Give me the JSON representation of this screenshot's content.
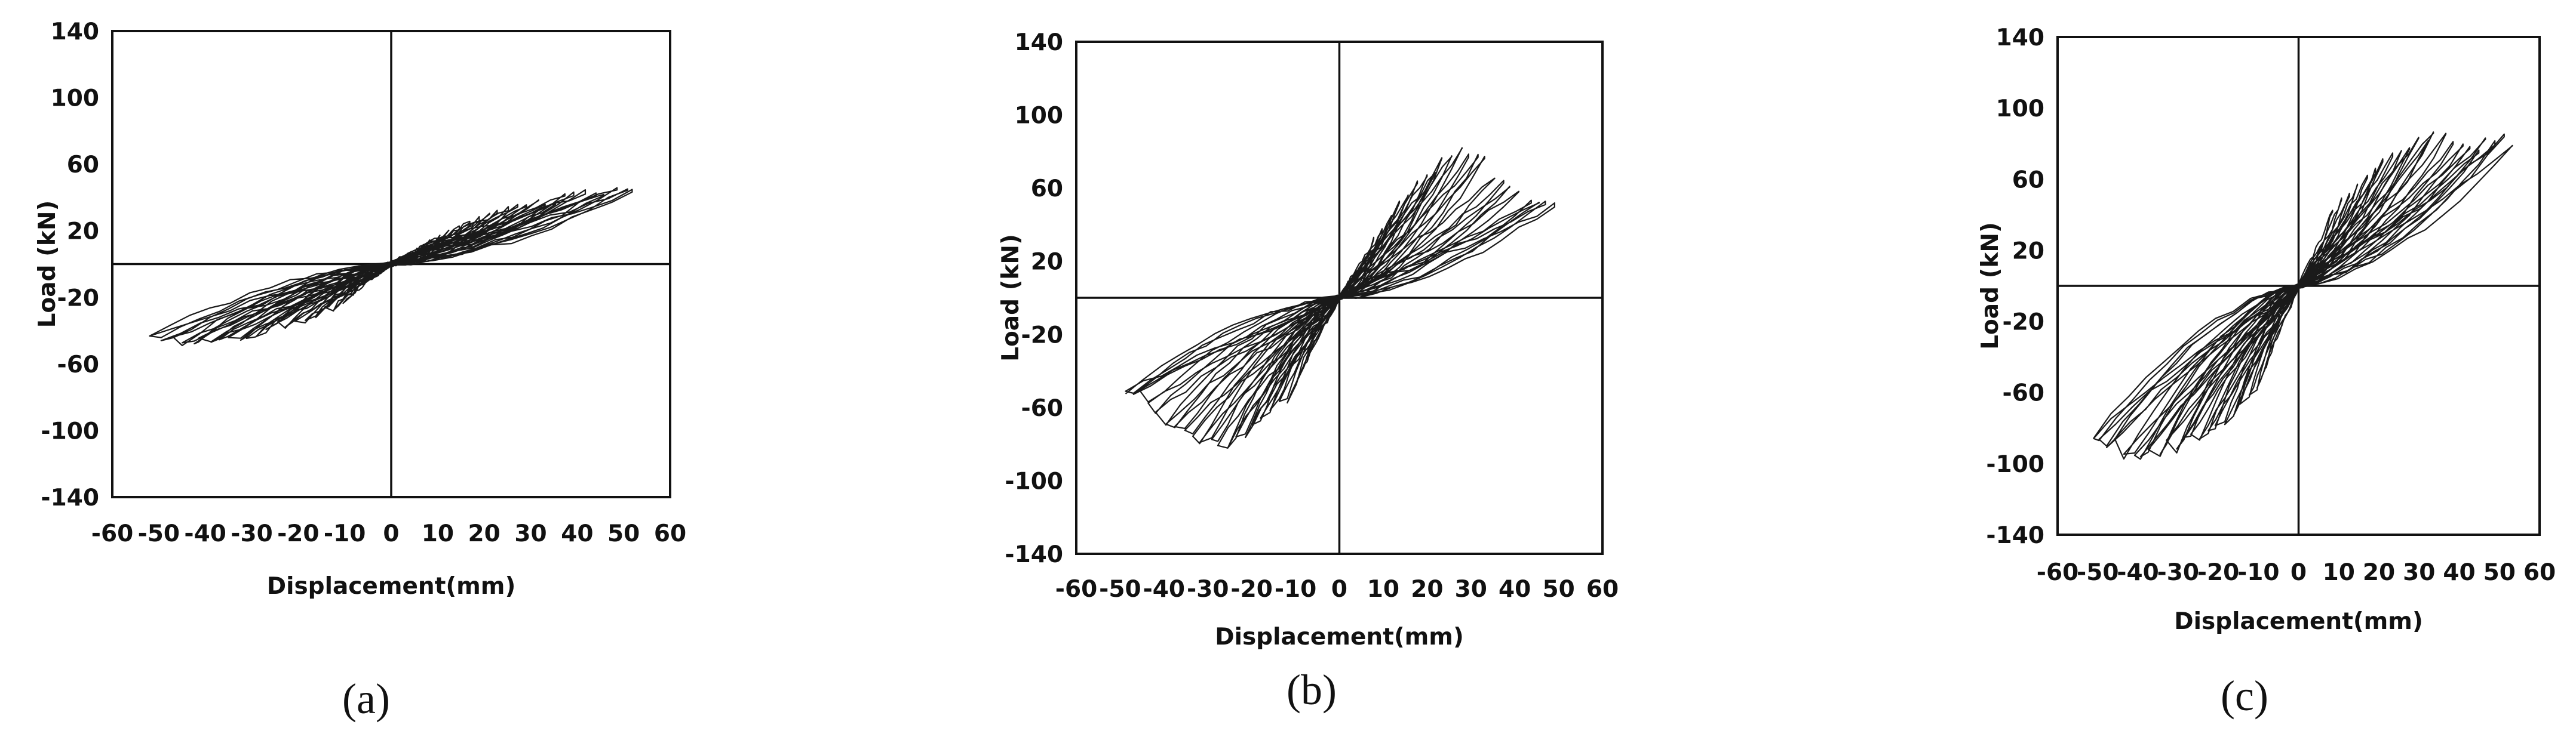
{
  "chart_data": [
    {
      "type": "line",
      "caption": "(a)",
      "xlabel": "Displacement(mm)",
      "ylabel": "Load (kN)",
      "xlim": [
        -60,
        60
      ],
      "ylim": [
        -140,
        140
      ],
      "xticks": [
        "-60",
        "-50",
        "-40",
        "-30",
        "-20",
        "-10",
        "0",
        "10",
        "20",
        "30",
        "40",
        "50",
        "60"
      ],
      "yticks": [
        "140",
        "100",
        "60",
        "20",
        "-20",
        "-60",
        "-100",
        "-140"
      ],
      "grid": false,
      "legend": "none",
      "x_limits_reached": [
        -52,
        53
      ],
      "peak_load_kN": {
        "positive": 47,
        "negative": -50
      },
      "envelope": {
        "x": [
          -52,
          -45,
          -40,
          -30,
          -20,
          -10,
          0,
          10,
          20,
          30,
          40,
          50,
          53
        ],
        "y": [
          -48,
          -50,
          -48,
          -44,
          -36,
          -24,
          0,
          18,
          30,
          37,
          43,
          46,
          47
        ]
      },
      "series": []
    },
    {
      "type": "line",
      "caption": "(b)",
      "xlabel": "Displacement(mm)",
      "ylabel": "Load (kN)",
      "xlim": [
        -60,
        60
      ],
      "ylim": [
        -140,
        140
      ],
      "xticks": [
        "-60",
        "-50",
        "-40",
        "-30",
        "-20",
        "-10",
        "0",
        "10",
        "20",
        "30",
        "40",
        "50",
        "60"
      ],
      "yticks": [
        "140",
        "100",
        "60",
        "20",
        "-20",
        "-60",
        "-100",
        "-140"
      ],
      "grid": false,
      "legend": "none",
      "x_limits_reached": [
        -50,
        50
      ],
      "peak_load_kN": {
        "positive": 87,
        "negative": -84
      },
      "envelope": {
        "x": [
          -50,
          -45,
          -40,
          -35,
          -30,
          -25,
          -20,
          -10,
          0,
          10,
          20,
          25,
          30,
          35,
          40,
          45,
          50
        ],
        "y": [
          -52,
          -55,
          -70,
          -80,
          -84,
          -82,
          -76,
          -52,
          0,
          42,
          74,
          82,
          87,
          70,
          62,
          55,
          50
        ]
      },
      "series": []
    },
    {
      "type": "line",
      "caption": "(c)",
      "xlabel": "Displacement(mm)",
      "ylabel": "Load (kN)",
      "xlim": [
        -60,
        60
      ],
      "ylim": [
        -140,
        140
      ],
      "xticks": [
        "-60",
        "-50",
        "-40",
        "-30",
        "-20",
        "-10",
        "0",
        "10",
        "20",
        "30",
        "40",
        "50",
        "60"
      ],
      "yticks": [
        "140",
        "100",
        "60",
        "20",
        "-20",
        "-60",
        "-100",
        "-140"
      ],
      "grid": false,
      "legend": "none",
      "x_limits_reached": [
        -52,
        54
      ],
      "peak_load_kN": {
        "positive": 90,
        "negative": -97
      },
      "envelope": {
        "x": [
          -52,
          -45,
          -40,
          -35,
          -30,
          -25,
          -20,
          -10,
          0,
          10,
          20,
          25,
          30,
          35,
          40,
          45,
          50,
          54
        ],
        "y": [
          -92,
          -96,
          -97,
          -95,
          -95,
          -90,
          -82,
          -58,
          0,
          52,
          72,
          82,
          90,
          88,
          86,
          82,
          86,
          85
        ]
      },
      "series": []
    }
  ]
}
